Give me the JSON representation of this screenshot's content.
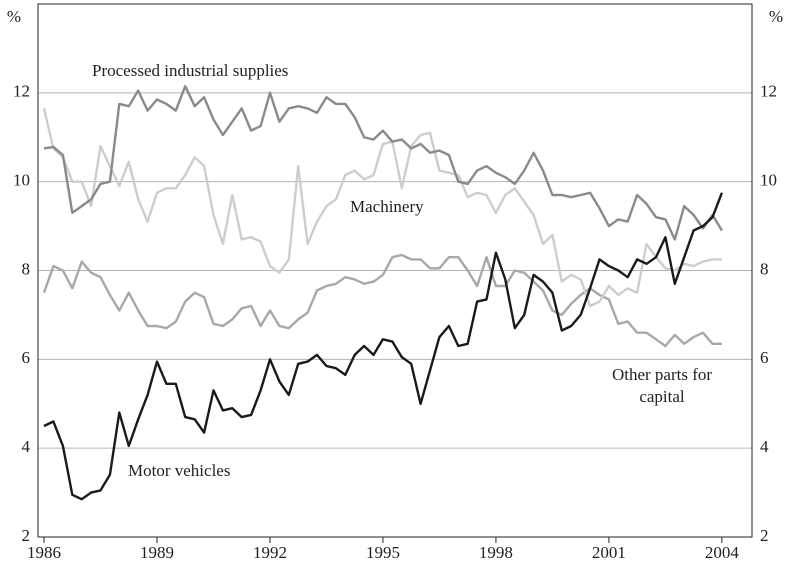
{
  "chart_data": {
    "type": "line",
    "y_unit_left": "%",
    "y_unit_right": "%",
    "annotations": [
      "Processed industrial supplies",
      "Machinery",
      "Other parts for",
      "capital",
      "Motor vehicles"
    ],
    "x": [
      1986,
      1986.25,
      1986.5,
      1986.75,
      1987,
      1987.25,
      1987.5,
      1987.75,
      1988,
      1988.25,
      1988.5,
      1988.75,
      1989,
      1989.25,
      1989.5,
      1989.75,
      1990,
      1990.25,
      1990.5,
      1990.75,
      1991,
      1991.25,
      1991.5,
      1991.75,
      1992,
      1992.25,
      1992.5,
      1992.75,
      1993,
      1993.25,
      1993.5,
      1993.75,
      1994,
      1994.25,
      1994.5,
      1994.75,
      1995,
      1995.25,
      1995.5,
      1995.75,
      1996,
      1996.25,
      1996.5,
      1996.75,
      1997,
      1997.25,
      1997.5,
      1997.75,
      1998,
      1998.25,
      1998.5,
      1998.75,
      1999,
      1999.25,
      1999.5,
      1999.75,
      2000,
      2000.25,
      2000.5,
      2000.75,
      2001,
      2001.25,
      2001.5,
      2001.75,
      2002,
      2002.25,
      2002.5,
      2002.75,
      2003,
      2003.25,
      2003.5,
      2003.75,
      2004
    ],
    "series": [
      {
        "name": "Other parts for capital",
        "color": "#a8a8a8",
        "values": [
          7.5,
          8.1,
          8.0,
          7.6,
          8.2,
          7.95,
          7.85,
          7.45,
          7.1,
          7.5,
          7.1,
          6.75,
          6.75,
          6.7,
          6.85,
          7.3,
          7.5,
          7.4,
          6.8,
          6.75,
          6.9,
          7.15,
          7.2,
          6.75,
          7.1,
          6.75,
          6.7,
          6.9,
          7.05,
          7.55,
          7.65,
          7.7,
          7.85,
          7.8,
          7.7,
          7.75,
          7.9,
          8.3,
          8.35,
          8.25,
          8.25,
          8.05,
          8.05,
          8.3,
          8.3,
          8.0,
          7.65,
          8.3,
          7.65,
          7.65,
          8.0,
          7.95,
          7.75,
          7.55,
          7.1,
          7.0,
          7.25,
          7.45,
          7.6,
          7.45,
          7.35,
          6.8,
          6.85,
          6.6,
          6.6,
          6.45,
          6.3,
          6.55,
          6.35,
          6.5,
          6.6,
          6.35,
          6.35
        ]
      },
      {
        "name": "Machinery",
        "color": "#cdcdcd",
        "values": [
          11.65,
          10.75,
          10.55,
          10.0,
          10.0,
          9.45,
          10.8,
          10.35,
          9.9,
          10.45,
          9.6,
          9.1,
          9.75,
          9.85,
          9.85,
          10.15,
          10.55,
          10.35,
          9.25,
          8.6,
          9.7,
          8.7,
          8.75,
          8.65,
          8.1,
          7.95,
          8.25,
          10.35,
          8.6,
          9.1,
          9.45,
          9.6,
          10.15,
          10.25,
          10.05,
          10.15,
          10.85,
          10.9,
          9.85,
          10.8,
          11.05,
          11.1,
          10.25,
          10.2,
          10.15,
          9.65,
          9.75,
          9.7,
          9.3,
          9.7,
          9.85,
          9.55,
          9.25,
          8.6,
          8.8,
          7.75,
          7.9,
          7.8,
          7.2,
          7.3,
          7.65,
          7.45,
          7.6,
          7.5,
          8.6,
          8.3,
          8.05,
          8.0,
          8.15,
          8.1,
          8.2,
          8.25,
          8.25
        ]
      },
      {
        "name": "Processed industrial supplies",
        "color": "#8a8a8a",
        "values": [
          10.75,
          10.78,
          10.6,
          9.3,
          9.45,
          9.6,
          9.95,
          10.0,
          11.75,
          11.7,
          12.05,
          11.6,
          11.85,
          11.75,
          11.6,
          12.15,
          11.7,
          11.9,
          11.4,
          11.05,
          11.35,
          11.65,
          11.15,
          11.25,
          12.0,
          11.35,
          11.65,
          11.7,
          11.65,
          11.55,
          11.9,
          11.75,
          11.75,
          11.45,
          11.0,
          10.95,
          11.15,
          10.9,
          10.95,
          10.75,
          10.85,
          10.65,
          10.7,
          10.6,
          10.0,
          9.95,
          10.25,
          10.35,
          10.2,
          10.1,
          9.95,
          10.25,
          10.65,
          10.25,
          9.7,
          9.7,
          9.65,
          9.7,
          9.75,
          9.4,
          9.0,
          9.15,
          9.1,
          9.7,
          9.5,
          9.2,
          9.15,
          8.7,
          9.45,
          9.25,
          8.95,
          9.25,
          8.9
        ]
      },
      {
        "name": "Motor vehicles",
        "color": "#1a1a1a",
        "values": [
          4.5,
          4.6,
          4.05,
          2.95,
          2.85,
          3.0,
          3.05,
          3.4,
          4.8,
          4.05,
          4.65,
          5.2,
          5.95,
          5.45,
          5.45,
          4.7,
          4.65,
          4.35,
          5.3,
          4.85,
          4.9,
          4.7,
          4.75,
          5.3,
          6.0,
          5.5,
          5.2,
          5.9,
          5.95,
          6.1,
          5.85,
          5.8,
          5.65,
          6.1,
          6.3,
          6.1,
          6.45,
          6.4,
          6.05,
          5.9,
          5.0,
          5.75,
          6.5,
          6.75,
          6.3,
          6.35,
          7.3,
          7.35,
          8.4,
          7.8,
          6.7,
          7.0,
          7.9,
          7.75,
          7.5,
          6.65,
          6.75,
          7.0,
          7.6,
          8.25,
          8.1,
          8.0,
          7.85,
          8.25,
          8.15,
          8.3,
          8.75,
          7.7,
          8.3,
          8.9,
          9.0,
          9.2,
          9.75
        ]
      }
    ],
    "xlim": [
      1985.84,
      2004.8
    ],
    "xticks": [
      1986,
      1989,
      1992,
      1995,
      1998,
      2001,
      2004
    ],
    "ylim": [
      2,
      14
    ],
    "yticks": [
      2,
      4,
      6,
      8,
      10,
      12
    ],
    "grid": true
  }
}
